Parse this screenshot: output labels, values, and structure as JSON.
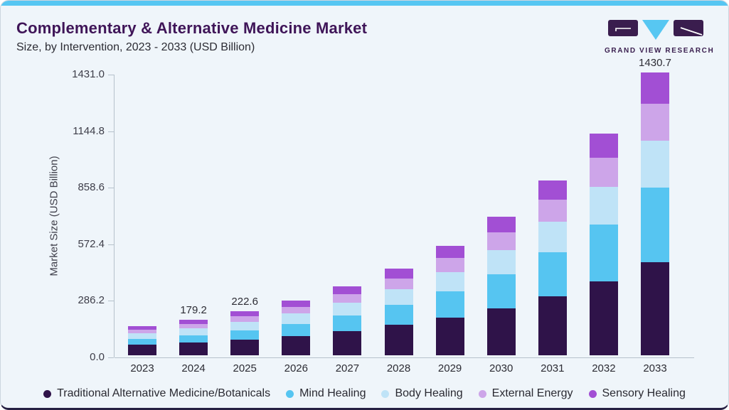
{
  "page": {
    "title": "Complementary & Alternative Medicine Market",
    "subtitle": "Size, by Intervention, 2023 - 2033 (USD Billion)",
    "logo_text": "GRAND VIEW RESEARCH"
  },
  "colors": {
    "accent_bar": "#56c6f2",
    "card_bg": "#eff5fa",
    "card_border_bottom": "#262043",
    "title_text": "#3f1558",
    "axis_line": "#b6c1cb",
    "logo_purple": "#3a1d4e",
    "logo_blue": "#57c7f2"
  },
  "chart_data": {
    "type": "bar",
    "stacked": true,
    "title": "Complementary & Alternative Medicine Market",
    "xlabel": "",
    "ylabel": "Market Size (USD Billion)",
    "categories": [
      "2023",
      "2024",
      "2025",
      "2026",
      "2027",
      "2028",
      "2029",
      "2030",
      "2031",
      "2032",
      "2033"
    ],
    "series": [
      {
        "name": "Traditional Alternative Medicine/Botanicals",
        "color": "#2f1349",
        "values": [
          54.1,
          65.6,
          80.5,
          98.8,
          122.9,
          153.2,
          191.1,
          238.7,
          298.2,
          373.1,
          469.3
        ]
      },
      {
        "name": "Mind Healing",
        "color": "#56c5f1",
        "values": [
          29.1,
          36.8,
          47.2,
          60.4,
          78.3,
          101.6,
          131.9,
          171.3,
          222.5,
          289.2,
          377.7
        ]
      },
      {
        "name": "Body Healing",
        "color": "#bfe3f7",
        "values": [
          29.1,
          35.1,
          42.9,
          52.4,
          64.8,
          80.3,
          99.6,
          123.8,
          153.7,
          191.1,
          238.9
        ]
      },
      {
        "name": "External Energy",
        "color": "#cda5e9",
        "values": [
          17.4,
          21.5,
          26.9,
          33.8,
          43.0,
          54.6,
          69.6,
          88.8,
          113.3,
          144.8,
          186.0
        ]
      },
      {
        "name": "Sensory Healing",
        "color": "#a24fd4",
        "values": [
          16.5,
          20.2,
          25.1,
          31.1,
          39.1,
          49.2,
          62.0,
          78.2,
          98.7,
          124.9,
          158.8
        ]
      }
    ],
    "totals_labeled": {
      "2024": "179.2",
      "2025": "222.6",
      "2033": "1430.7"
    },
    "yticks": [
      "0.0",
      "286.2",
      "572.4",
      "858.6",
      "1144.8",
      "1431.0"
    ],
    "ylim": [
      0,
      1431
    ],
    "grid": false,
    "legend_position": "bottom"
  }
}
